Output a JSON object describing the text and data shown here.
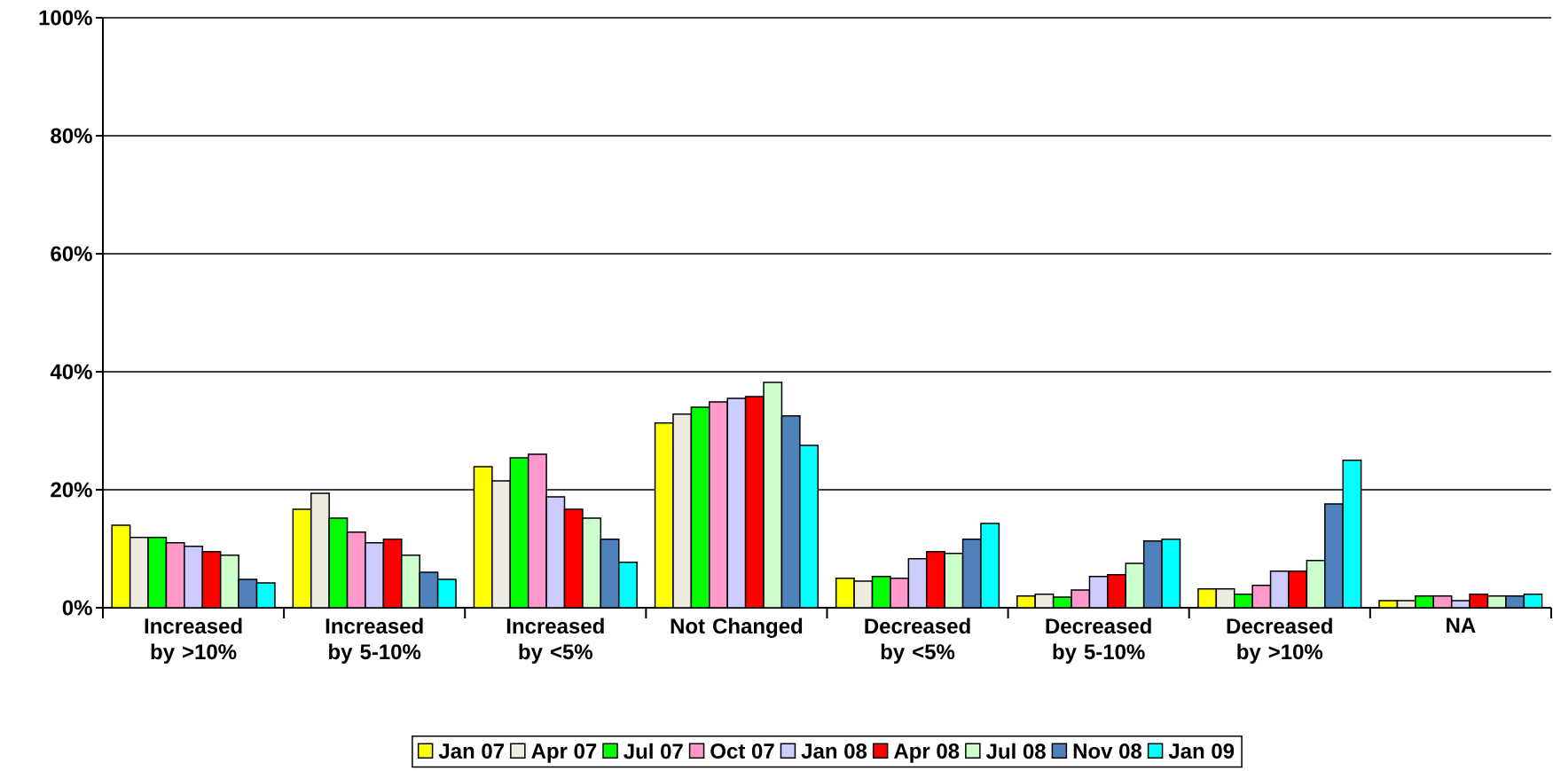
{
  "chart_data": {
    "type": "bar",
    "categories": [
      "Increased by >10%",
      "Increased by 5-10%",
      "Increased by <5%",
      "Not Changed",
      "Decreased by <5%",
      "Decreased by 5-10%",
      "Decreased by >10%",
      "NA"
    ],
    "series": [
      {
        "name": "Jan 07",
        "color": "#ffff00",
        "values": [
          14,
          16.7,
          23.9,
          31.3,
          5,
          2,
          3.2,
          1.2
        ]
      },
      {
        "name": "Apr 07",
        "color": "#eeece1",
        "values": [
          11.9,
          19.4,
          21.5,
          32.8,
          4.5,
          2.3,
          3.2,
          1.2
        ]
      },
      {
        "name": "Jul 07",
        "color": "#00ff00",
        "values": [
          11.9,
          15.2,
          25.4,
          34,
          5.3,
          1.8,
          2.3,
          2
        ]
      },
      {
        "name": "Oct 07",
        "color": "#ff99cc",
        "values": [
          11,
          12.8,
          26,
          34.9,
          5,
          3,
          3.8,
          2
        ]
      },
      {
        "name": "Jan 08",
        "color": "#ccccff",
        "values": [
          10.4,
          11,
          18.8,
          35.5,
          8.3,
          5.3,
          6.2,
          1.2
        ]
      },
      {
        "name": "Apr 08",
        "color": "#ff0000",
        "values": [
          9.5,
          11.6,
          16.7,
          35.8,
          9.5,
          5.6,
          6.2,
          2.3
        ]
      },
      {
        "name": "Jul 08",
        "color": "#ccffcc",
        "values": [
          8.9,
          8.9,
          15.2,
          38.2,
          9.2,
          7.5,
          8,
          2
        ]
      },
      {
        "name": "Nov 08",
        "color": "#4f81bd",
        "values": [
          4.8,
          6,
          11.6,
          32.5,
          11.6,
          11.3,
          17.6,
          2
        ]
      },
      {
        "name": "Jan 09",
        "color": "#00ffff",
        "values": [
          4.2,
          4.8,
          7.7,
          27.5,
          14.3,
          11.6,
          25,
          2.3
        ]
      }
    ],
    "ylim": [
      0,
      100
    ],
    "yticks": [
      {
        "value": 0,
        "label": "0%"
      },
      {
        "value": 20,
        "label": "20%"
      },
      {
        "value": 40,
        "label": "40%"
      },
      {
        "value": 60,
        "label": "60%"
      },
      {
        "value": 80,
        "label": "80%"
      },
      {
        "value": 100,
        "label": "100%"
      }
    ],
    "grid": "y",
    "legend": "bottom"
  }
}
